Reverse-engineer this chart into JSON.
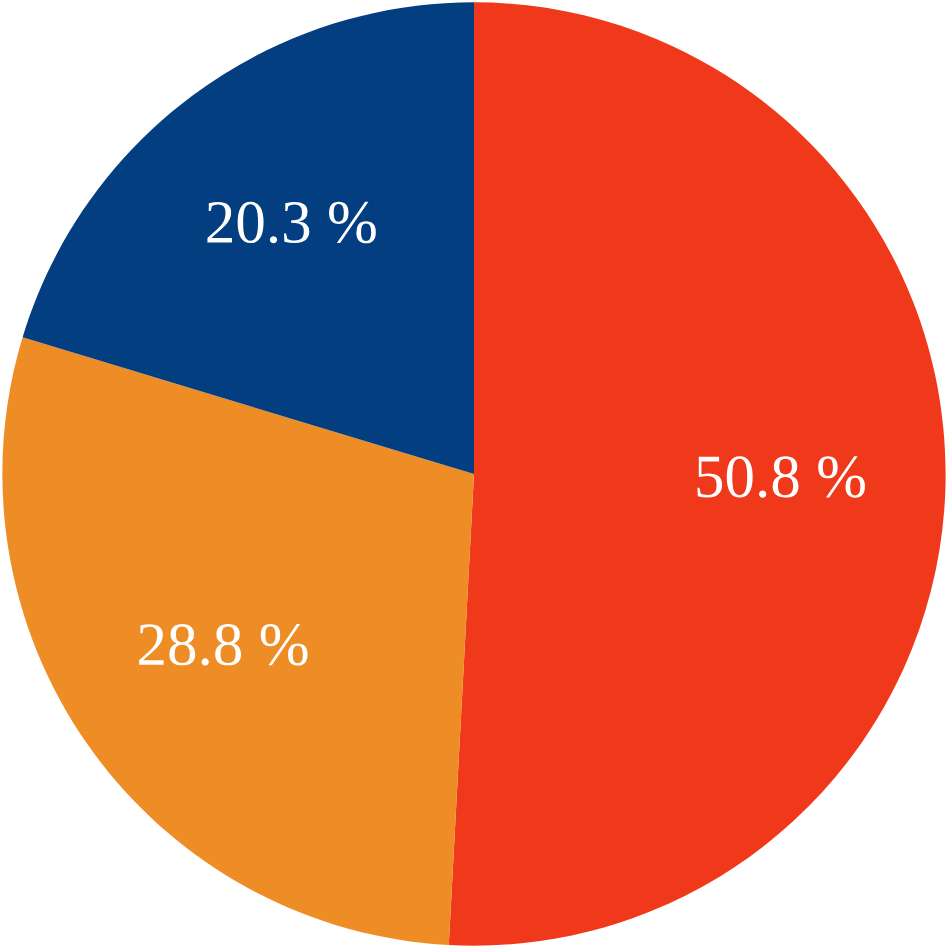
{
  "chart_data": {
    "type": "pie",
    "categories": [
      null,
      null,
      null
    ],
    "values": [
      50.8,
      28.8,
      20.3
    ],
    "colors": [
      "#f0391a",
      "#ee8d25",
      "#033f80"
    ],
    "value_labels": [
      "50.8 %",
      "28.8 %",
      "20.3 %"
    ]
  }
}
